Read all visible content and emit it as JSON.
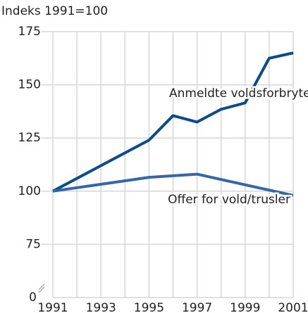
{
  "chart_data": {
    "type": "line",
    "y_axis_label": "Indeks 1991=100",
    "xlim": [
      1991,
      2001
    ],
    "xticks": [
      1991,
      1993,
      1995,
      1997,
      1999,
      2001
    ],
    "ylim": [
      0,
      175
    ],
    "yticks": [
      0,
      75,
      100,
      125,
      150,
      175
    ],
    "axis_break": true,
    "grid": true,
    "series": [
      {
        "name": "Anmeldte voldsforbrytelser",
        "color": "#0b4a8b",
        "x": [
          1991,
          1992,
          1993,
          1994,
          1995,
          1996,
          1997,
          1998,
          1999,
          2000,
          2001
        ],
        "values": [
          100,
          106,
          112,
          118,
          124,
          135.5,
          132.5,
          138.5,
          141.5,
          162.5,
          165
        ]
      },
      {
        "name": "Offer for vold/trusler",
        "color": "#3567a8",
        "x": [
          1991,
          1995,
          1997,
          2001
        ],
        "values": [
          100,
          106.5,
          108,
          98
        ]
      }
    ]
  }
}
